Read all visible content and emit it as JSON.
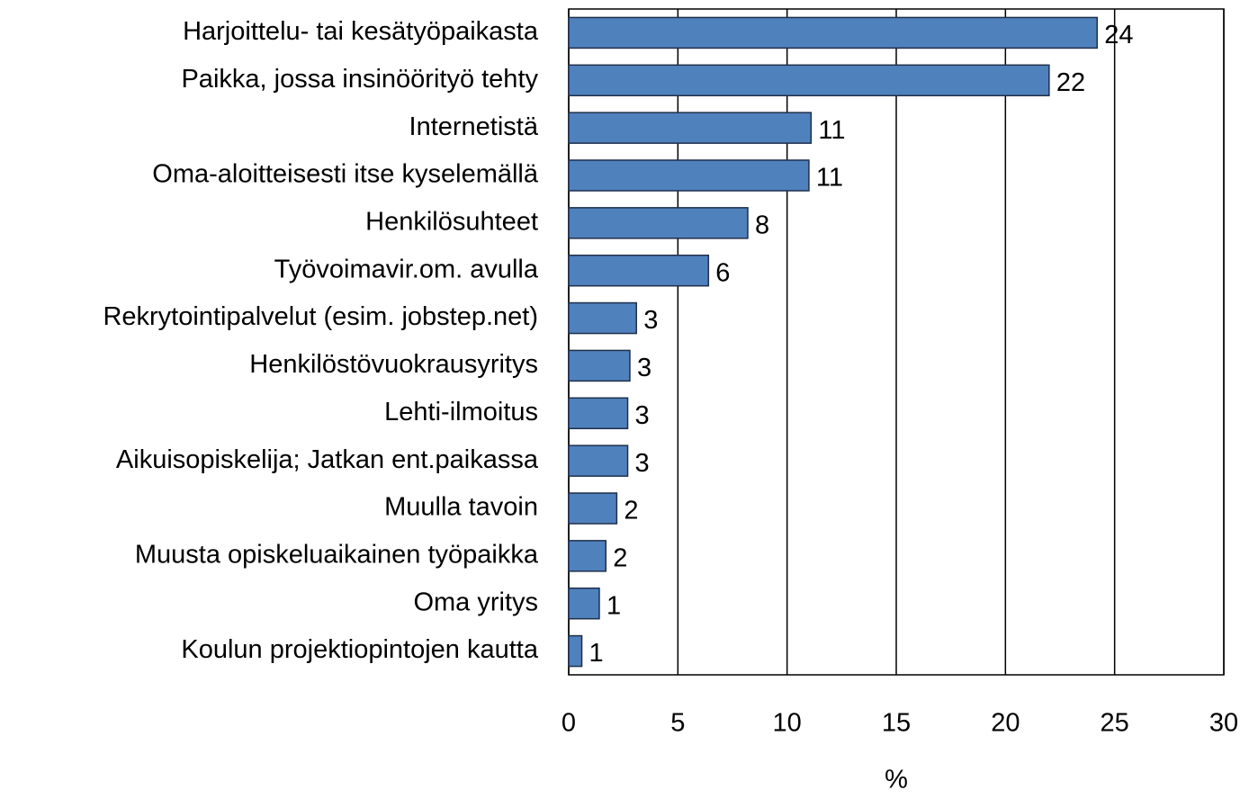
{
  "chart_data": {
    "type": "barh",
    "categories": [
      "Harjoittelu- tai kesätyöpaikasta",
      "Paikka, jossa insinöörityö tehty",
      "Internetistä",
      "Oma-aloitteisesti  itse kyselemällä",
      "Henkilösuhteet",
      "Työvoimavir.om. avulla",
      "Rekrytointipalvelut (esim. jobstep.net)",
      "Henkilöstövuokrausyritys",
      "Lehti-ilmoitus",
      "Aikuisopiskelija; Jatkan ent.paikassa",
      "Muulla tavoin",
      "Muusta opiskeluaikainen työpaikka",
      "Oma yritys",
      "Koulun projektiopintojen kautta"
    ],
    "values": [
      24.2,
      22.0,
      11.1,
      11.0,
      8.2,
      6.4,
      3.1,
      2.8,
      2.7,
      2.7,
      2.2,
      1.7,
      1.4,
      0.6
    ],
    "value_labels": [
      "24",
      "22",
      "11",
      "11",
      "8",
      "6",
      "3",
      "3",
      "3",
      "3",
      "2",
      "2",
      "1",
      "1"
    ],
    "color": "#4f81bd",
    "xlabel": "%",
    "xlim": [
      0,
      30
    ],
    "xticks": [
      0,
      5,
      10,
      15,
      20,
      25,
      30
    ],
    "grid": true
  }
}
